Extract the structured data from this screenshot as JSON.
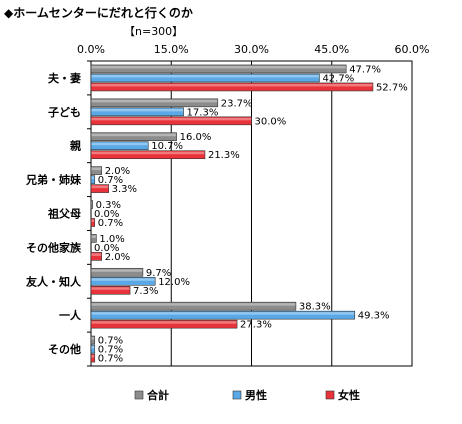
{
  "header": {
    "title": "◆ホームセンターにだれと行くのか",
    "n_label": "【n=300】"
  },
  "colors": {
    "合計": "#8c8c8c",
    "男性": "#5aa9e6",
    "女性": "#e8333a"
  },
  "chart_data": {
    "type": "bar",
    "orientation": "horizontal",
    "xlim": [
      0,
      60
    ],
    "xticks": [
      "0.0%",
      "15.0%",
      "30.0%",
      "45.0%",
      "60.0%"
    ],
    "grid": true,
    "legend_position": "bottom",
    "categories": [
      "夫・妻",
      "子ども",
      "親",
      "兄弟・姉妹",
      "祖父母",
      "その他家族",
      "友人・知人",
      "一人",
      "その他"
    ],
    "series": [
      {
        "name": "合計",
        "values": [
          47.7,
          23.7,
          16.0,
          2.0,
          0.3,
          1.0,
          9.7,
          38.3,
          0.7
        ],
        "labels": [
          "47.7%",
          "23.7%",
          "16.0%",
          "2.0%",
          "0.3%",
          "1.0%",
          "9.7%",
          "38.3%",
          "0.7%"
        ]
      },
      {
        "name": "男性",
        "values": [
          42.7,
          17.3,
          10.7,
          0.7,
          0.0,
          0.0,
          12.0,
          49.3,
          0.7
        ],
        "labels": [
          "42.7%",
          "17.3%",
          "10.7%",
          "0.7%",
          "0.0%",
          "0.0%",
          "12.0%",
          "49.3%",
          "0.7%"
        ]
      },
      {
        "name": "女性",
        "values": [
          52.7,
          30.0,
          21.3,
          3.3,
          0.7,
          2.0,
          7.3,
          27.3,
          0.7
        ],
        "labels": [
          "52.7%",
          "30.0%",
          "21.3%",
          "3.3%",
          "0.7%",
          "2.0%",
          "7.3%",
          "27.3%",
          "0.7%"
        ]
      }
    ]
  }
}
